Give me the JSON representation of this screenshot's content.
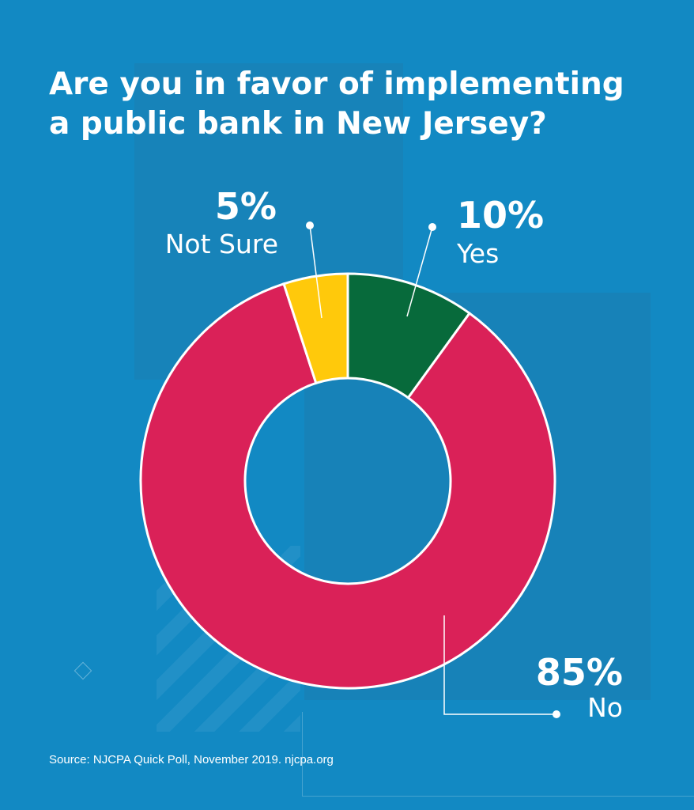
{
  "title": "Are you in favor of implementing a public bank in New Jersey?",
  "source": "Source: NJCPA Quick Poll, November 2019. njcpa.org",
  "colors": {
    "background": "#1289c3",
    "yes": "#076a3b",
    "no": "#da2158",
    "not_sure": "#ffc90b",
    "stroke": "#ffffff"
  },
  "chart_data": {
    "type": "pie",
    "variant": "donut",
    "title": "Are you in favor of implementing a public bank in New Jersey?",
    "slices": [
      {
        "label": "Yes",
        "value": 10,
        "value_label": "10%",
        "color": "#076a3b"
      },
      {
        "label": "No",
        "value": 85,
        "value_label": "85%",
        "color": "#da2158"
      },
      {
        "label": "Not Sure",
        "value": 5,
        "value_label": "5%",
        "color": "#ffc90b"
      }
    ],
    "start_angle": "12 o'clock",
    "direction": "clockwise",
    "legend": "none"
  }
}
